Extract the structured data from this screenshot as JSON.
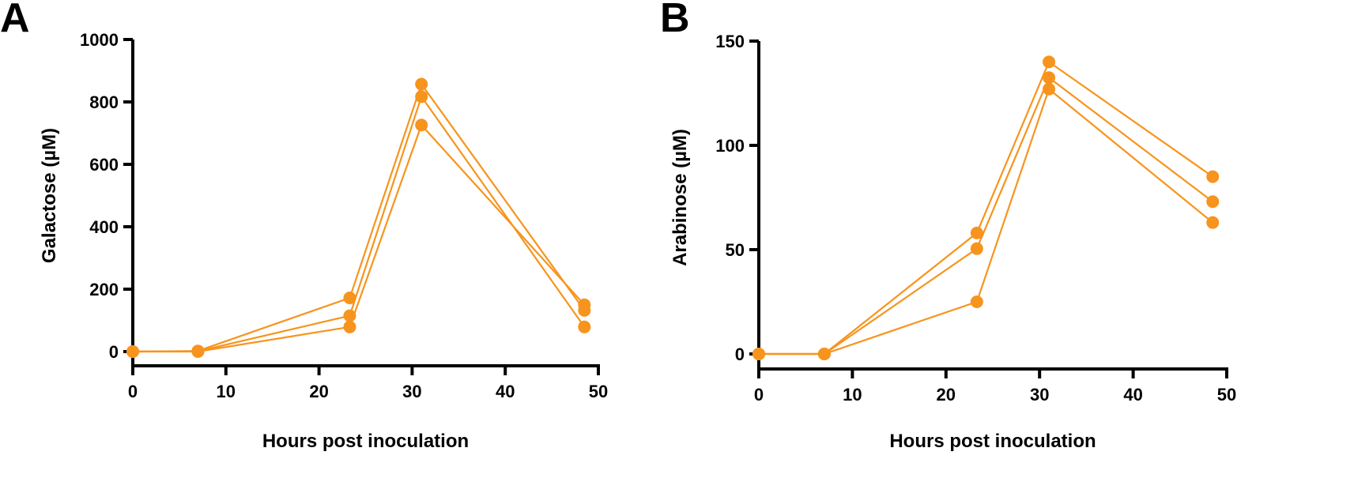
{
  "chart_data": [
    {
      "panel_label": "A",
      "type": "line",
      "xlabel": "Hours post inoculation",
      "ylabel": "Galactose (µM)",
      "xlim": [
        0,
        50
      ],
      "ylim": [
        0,
        1000
      ],
      "xticks": [
        0,
        10,
        20,
        30,
        40,
        50
      ],
      "yticks": [
        0,
        200,
        400,
        600,
        800,
        1000
      ],
      "grid": false,
      "color": "#f7941d",
      "x": [
        0,
        7,
        23.3,
        31,
        48.5
      ],
      "series": [
        {
          "values": [
            0,
            2,
            172,
            857,
            132
          ]
        },
        {
          "values": [
            0,
            1,
            115,
            817,
            79
          ]
        },
        {
          "values": [
            0,
            0,
            79,
            726,
            150
          ]
        }
      ]
    },
    {
      "panel_label": "B",
      "type": "line",
      "xlabel": "Hours post inoculation",
      "ylabel": "Arabinose (µM)",
      "xlim": [
        0,
        50
      ],
      "ylim": [
        0,
        150
      ],
      "xticks": [
        0,
        10,
        20,
        30,
        40,
        50
      ],
      "yticks": [
        0,
        50,
        100,
        150
      ],
      "grid": false,
      "color": "#f7941d",
      "x": [
        0,
        7,
        23.3,
        31,
        48.5
      ],
      "series": [
        {
          "values": [
            0,
            0,
            58,
            140,
            85
          ]
        },
        {
          "values": [
            0,
            0,
            50.5,
            132.5,
            73
          ]
        },
        {
          "values": [
            0,
            0,
            25,
            127,
            63
          ]
        }
      ]
    }
  ]
}
